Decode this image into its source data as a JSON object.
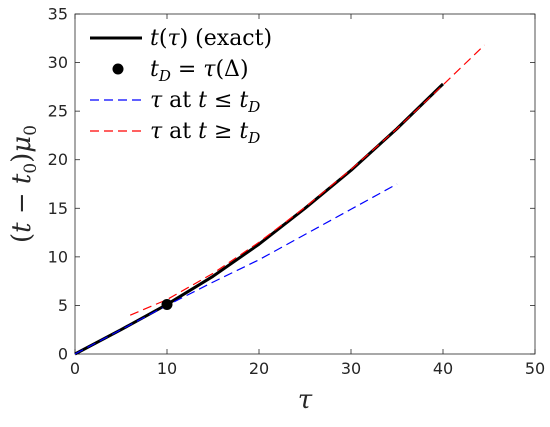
{
  "chart_data": {
    "type": "line",
    "xlabel": "τ",
    "ylabel": "(t − t0)μ0",
    "ylabel_parts": {
      "open": "(",
      "t": "t",
      "minus": " − ",
      "t0": "t",
      "t0_sub": "0",
      "close": ")",
      "mu": "μ",
      "mu_sub": "0"
    },
    "xlim": [
      0,
      50
    ],
    "ylim": [
      0,
      35
    ],
    "xticks": [
      0,
      10,
      20,
      30,
      40,
      50
    ],
    "yticks": [
      0,
      5,
      10,
      15,
      20,
      25,
      30,
      35
    ],
    "grid": false,
    "legend_placement": "top-left",
    "series": [
      {
        "name": "t(τ) (exact)",
        "style": "solid",
        "color": "#000000",
        "x": [
          0,
          5,
          10,
          15,
          20,
          25,
          30,
          35,
          40
        ],
        "y": [
          0,
          2.5,
          5.1,
          8.0,
          11.3,
          15.0,
          18.9,
          23.2,
          27.8
        ]
      },
      {
        "name": "τ at t ≤ tD",
        "style": "dashed",
        "color": "#0000ff",
        "x": [
          0,
          5,
          10,
          15,
          20,
          25,
          30,
          35
        ],
        "y": [
          0,
          2.5,
          5.0,
          7.4,
          9.7,
          12.3,
          14.9,
          17.5
        ]
      },
      {
        "name": "τ at t ≥ tD",
        "style": "dashed",
        "color": "#ff0000",
        "x": [
          6,
          10,
          15,
          20,
          25,
          30,
          35,
          40,
          44.5
        ],
        "y": [
          4.0,
          5.6,
          8.3,
          11.5,
          15.1,
          19.0,
          23.2,
          27.7,
          31.8
        ]
      }
    ],
    "points": [
      {
        "name": "tD = τ(Δ)",
        "x": 10,
        "y": 5.1,
        "color": "#000000"
      }
    ],
    "legend": [
      {
        "key": "exact",
        "parts": [
          {
            "t": "t",
            "c": "it"
          },
          {
            "t": "(",
            "c": ""
          },
          {
            "t": "τ",
            "c": "it"
          },
          {
            "t": ") (exact)",
            "c": ""
          }
        ]
      },
      {
        "key": "tD",
        "parts": [
          {
            "t": "t",
            "c": "it"
          },
          {
            "t": "D",
            "c": "sub"
          },
          {
            "t": " = ",
            "c": ""
          },
          {
            "t": "τ",
            "c": "it"
          },
          {
            "t": "(Δ)",
            "c": ""
          }
        ]
      },
      {
        "key": "blue",
        "parts": [
          {
            "t": "τ",
            "c": "it"
          },
          {
            "t": " at ",
            "c": ""
          },
          {
            "t": "t",
            "c": "it"
          },
          {
            "t": " ≤ ",
            "c": ""
          },
          {
            "t": "t",
            "c": "it"
          },
          {
            "t": "D",
            "c": "sub"
          }
        ]
      },
      {
        "key": "red",
        "parts": [
          {
            "t": "τ",
            "c": "it"
          },
          {
            "t": " at ",
            "c": ""
          },
          {
            "t": "t",
            "c": "it"
          },
          {
            "t": " ≥ ",
            "c": ""
          },
          {
            "t": "t",
            "c": "it"
          },
          {
            "t": "D",
            "c": "sub"
          }
        ]
      }
    ]
  }
}
